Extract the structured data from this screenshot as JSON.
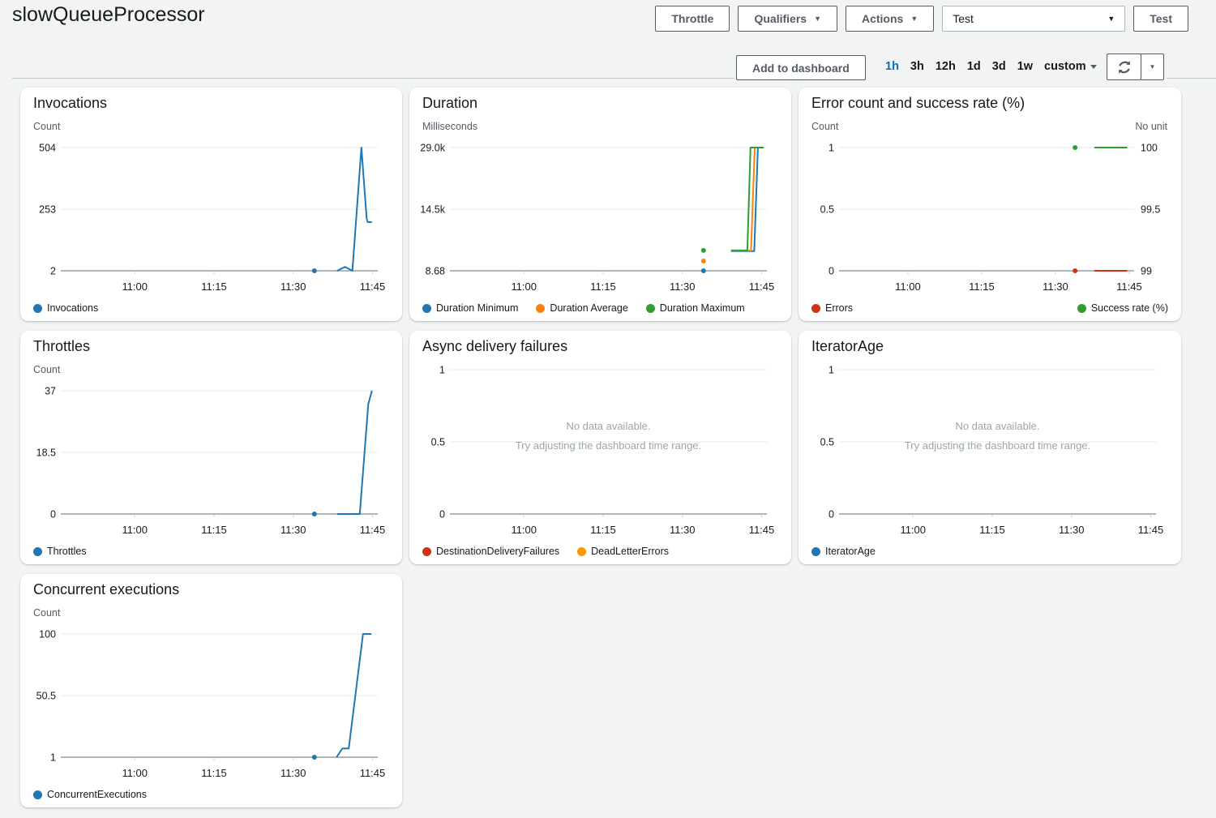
{
  "header": {
    "title": "slowQueueProcessor",
    "throttle_button": "Throttle",
    "qualifiers_menu": "Qualifiers",
    "actions_menu": "Actions",
    "test_select_value": "Test",
    "test_button": "Test"
  },
  "toolbar": {
    "add_to_dashboard": "Add to dashboard",
    "time_ranges": [
      "1h",
      "3h",
      "12h",
      "1d",
      "3d",
      "1w"
    ],
    "selected_range": "1h",
    "custom_label": "custom"
  },
  "icons": {
    "caret_down": "▼",
    "refresh": "circular-arrows"
  },
  "colors": {
    "link_blue": "#0073bb",
    "series_blue": "#1f77b4",
    "series_orange": "#ff7f0e",
    "series_green": "#2ca02c",
    "series_red": "#d13212",
    "series_amber": "#ff9900"
  },
  "x_axis_note": "series x values are minutes after 11:00; visible window is 10:46 to 11:46",
  "chart_data": [
    {
      "type": "line",
      "title": "Invocations",
      "unit_left": "Count",
      "unit_right": null,
      "x_range": [
        -14,
        46
      ],
      "x_ticks": [
        {
          "x": 0,
          "label": "11:00"
        },
        {
          "x": 15,
          "label": "11:15"
        },
        {
          "x": 30,
          "label": "11:30"
        },
        {
          "x": 45,
          "label": "11:45"
        }
      ],
      "y_left": {
        "ticks": [
          {
            "v": 504,
            "label": "504"
          },
          {
            "v": 253,
            "label": "253"
          },
          {
            "v": 2,
            "label": "2"
          }
        ]
      },
      "y_right": null,
      "series": [
        {
          "name": "Invocations",
          "color": "#1f77b4",
          "axis": "left",
          "dot": [
            34,
            2
          ],
          "points": [
            [
              38.3,
              2
            ],
            [
              39.8,
              18
            ],
            [
              41.2,
              2
            ],
            [
              42.9,
              504
            ],
            [
              43.9,
              215
            ],
            [
              44.1,
              200
            ],
            [
              44.9,
              200
            ]
          ]
        }
      ],
      "legend": [
        {
          "label": "Invocations",
          "color": "#1f77b4"
        }
      ],
      "legend_layout": "row",
      "empty": false,
      "no_data": null
    },
    {
      "type": "line",
      "title": "Duration",
      "unit_left": "Milliseconds",
      "unit_right": null,
      "x_range": [
        -14,
        46
      ],
      "x_ticks": [
        {
          "x": 0,
          "label": "11:00"
        },
        {
          "x": 15,
          "label": "11:15"
        },
        {
          "x": 30,
          "label": "11:30"
        },
        {
          "x": 45,
          "label": "11:45"
        }
      ],
      "y_left": {
        "ticks": [
          {
            "v": 29000,
            "label": "29.0k"
          },
          {
            "v": 14504,
            "label": "14.5k"
          },
          {
            "v": 8.68,
            "label": "8.68"
          }
        ]
      },
      "y_right": null,
      "series": [
        {
          "name": "Duration Minimum",
          "color": "#1f77b4",
          "axis": "left",
          "dot": [
            34,
            8.68
          ],
          "points": [
            [
              39.2,
              4650
            ],
            [
              43.6,
              4650
            ],
            [
              44.3,
              29000
            ],
            [
              44.9,
              29000
            ]
          ]
        },
        {
          "name": "Duration Average",
          "color": "#ff7f0e",
          "axis": "left",
          "dot": [
            34,
            2300
          ],
          "points": [
            [
              39.2,
              4750
            ],
            [
              43.0,
              4750
            ],
            [
              43.7,
              29000
            ],
            [
              45.2,
              29000
            ]
          ]
        },
        {
          "name": "Duration Maximum",
          "color": "#2ca02c",
          "axis": "left",
          "dot": [
            34,
            4800
          ],
          "points": [
            [
              39.2,
              4800
            ],
            [
              42.3,
              4800
            ],
            [
              42.9,
              29000
            ],
            [
              45.4,
              29000
            ]
          ]
        }
      ],
      "legend": [
        {
          "label": "Duration Minimum",
          "color": "#1f77b4"
        },
        {
          "label": "Duration Average",
          "color": "#ff7f0e"
        },
        {
          "label": "Duration Maximum",
          "color": "#2ca02c"
        }
      ],
      "legend_layout": "row",
      "empty": false,
      "no_data": null
    },
    {
      "type": "line",
      "title": "Error count and success rate (%)",
      "unit_left": "Count",
      "unit_right": "No unit",
      "x_range": [
        -14,
        46
      ],
      "x_ticks": [
        {
          "x": 0,
          "label": "11:00"
        },
        {
          "x": 15,
          "label": "11:15"
        },
        {
          "x": 30,
          "label": "11:30"
        },
        {
          "x": 45,
          "label": "11:45"
        }
      ],
      "y_left": {
        "ticks": [
          {
            "v": 1,
            "label": "1"
          },
          {
            "v": 0.5,
            "label": "0.5"
          },
          {
            "v": 0,
            "label": "0"
          }
        ]
      },
      "y_right": {
        "ticks": [
          {
            "v": 100,
            "label": "100"
          },
          {
            "v": 99.5,
            "label": "99.5"
          },
          {
            "v": 99,
            "label": "99"
          }
        ]
      },
      "series": [
        {
          "name": "Errors",
          "color": "#d13212",
          "axis": "left",
          "dot": [
            34,
            0
          ],
          "points": [
            [
              37.9,
              0
            ],
            [
              44.6,
              0
            ]
          ]
        },
        {
          "name": "Success rate (%)",
          "color": "#2ca02c",
          "axis": "right",
          "dot": [
            34,
            100
          ],
          "points": [
            [
              37.9,
              100
            ],
            [
              44.6,
              100
            ]
          ]
        }
      ],
      "legend": [
        {
          "label": "Errors",
          "color": "#d13212"
        },
        {
          "label": "Success rate (%)",
          "color": "#2ca02c"
        }
      ],
      "legend_layout": "spread",
      "empty": false,
      "no_data": null
    },
    {
      "type": "line",
      "title": "Throttles",
      "unit_left": "Count",
      "unit_right": null,
      "x_range": [
        -14,
        46
      ],
      "x_ticks": [
        {
          "x": 0,
          "label": "11:00"
        },
        {
          "x": 15,
          "label": "11:15"
        },
        {
          "x": 30,
          "label": "11:30"
        },
        {
          "x": 45,
          "label": "11:45"
        }
      ],
      "y_left": {
        "ticks": [
          {
            "v": 37,
            "label": "37"
          },
          {
            "v": 18.5,
            "label": "18.5"
          },
          {
            "v": 0,
            "label": "0"
          }
        ]
      },
      "y_right": null,
      "series": [
        {
          "name": "Throttles",
          "color": "#1f77b4",
          "axis": "left",
          "dot": [
            34,
            0
          ],
          "points": [
            [
              38.3,
              0
            ],
            [
              42.6,
              0
            ],
            [
              44.2,
              33
            ],
            [
              44.9,
              37
            ]
          ]
        }
      ],
      "legend": [
        {
          "label": "Throttles",
          "color": "#1f77b4"
        }
      ],
      "legend_layout": "row",
      "empty": false,
      "no_data": null
    },
    {
      "type": "line",
      "title": "Async delivery failures",
      "unit_left": null,
      "unit_right": null,
      "x_range": [
        -14,
        46
      ],
      "x_ticks": [
        {
          "x": 0,
          "label": "11:00"
        },
        {
          "x": 15,
          "label": "11:15"
        },
        {
          "x": 30,
          "label": "11:30"
        },
        {
          "x": 45,
          "label": "11:45"
        }
      ],
      "y_left": {
        "ticks": [
          {
            "v": 1,
            "label": "1"
          },
          {
            "v": 0.5,
            "label": "0.5"
          },
          {
            "v": 0,
            "label": "0"
          }
        ]
      },
      "y_right": null,
      "series": [],
      "legend": [
        {
          "label": "DestinationDeliveryFailures",
          "color": "#d13212"
        },
        {
          "label": "DeadLetterErrors",
          "color": "#ff9900"
        }
      ],
      "legend_layout": "row",
      "empty": true,
      "no_data": {
        "title": "No data available.",
        "hint": "Try adjusting the dashboard time range."
      }
    },
    {
      "type": "line",
      "title": "IteratorAge",
      "unit_left": null,
      "unit_right": null,
      "x_range": [
        -14,
        46
      ],
      "x_ticks": [
        {
          "x": 0,
          "label": "11:00"
        },
        {
          "x": 15,
          "label": "11:15"
        },
        {
          "x": 30,
          "label": "11:30"
        },
        {
          "x": 45,
          "label": "11:45"
        }
      ],
      "y_left": {
        "ticks": [
          {
            "v": 1,
            "label": "1"
          },
          {
            "v": 0.5,
            "label": "0.5"
          },
          {
            "v": 0,
            "label": "0"
          }
        ]
      },
      "y_right": null,
      "series": [],
      "legend": [
        {
          "label": "IteratorAge",
          "color": "#1f77b4"
        }
      ],
      "legend_layout": "row",
      "empty": true,
      "no_data": {
        "title": "No data available.",
        "hint": "Try adjusting the dashboard time range."
      }
    },
    {
      "type": "line",
      "title": "Concurrent executions",
      "unit_left": "Count",
      "unit_right": null,
      "x_range": [
        -14,
        46
      ],
      "x_ticks": [
        {
          "x": 0,
          "label": "11:00"
        },
        {
          "x": 15,
          "label": "11:15"
        },
        {
          "x": 30,
          "label": "11:30"
        },
        {
          "x": 45,
          "label": "11:45"
        }
      ],
      "y_left": {
        "ticks": [
          {
            "v": 100,
            "label": "100"
          },
          {
            "v": 50.5,
            "label": "50.5"
          },
          {
            "v": 1,
            "label": "1"
          }
        ]
      },
      "y_right": null,
      "series": [
        {
          "name": "ConcurrentExecutions",
          "color": "#1f77b4",
          "axis": "left",
          "dot": [
            34,
            1
          ],
          "points": [
            [
              38.2,
              1
            ],
            [
              39.3,
              8
            ],
            [
              40.5,
              8
            ],
            [
              43.2,
              100
            ],
            [
              44.8,
              100
            ]
          ]
        }
      ],
      "legend": [
        {
          "label": "ConcurrentExecutions",
          "color": "#1f77b4"
        }
      ],
      "legend_layout": "row",
      "empty": false,
      "no_data": null
    }
  ]
}
